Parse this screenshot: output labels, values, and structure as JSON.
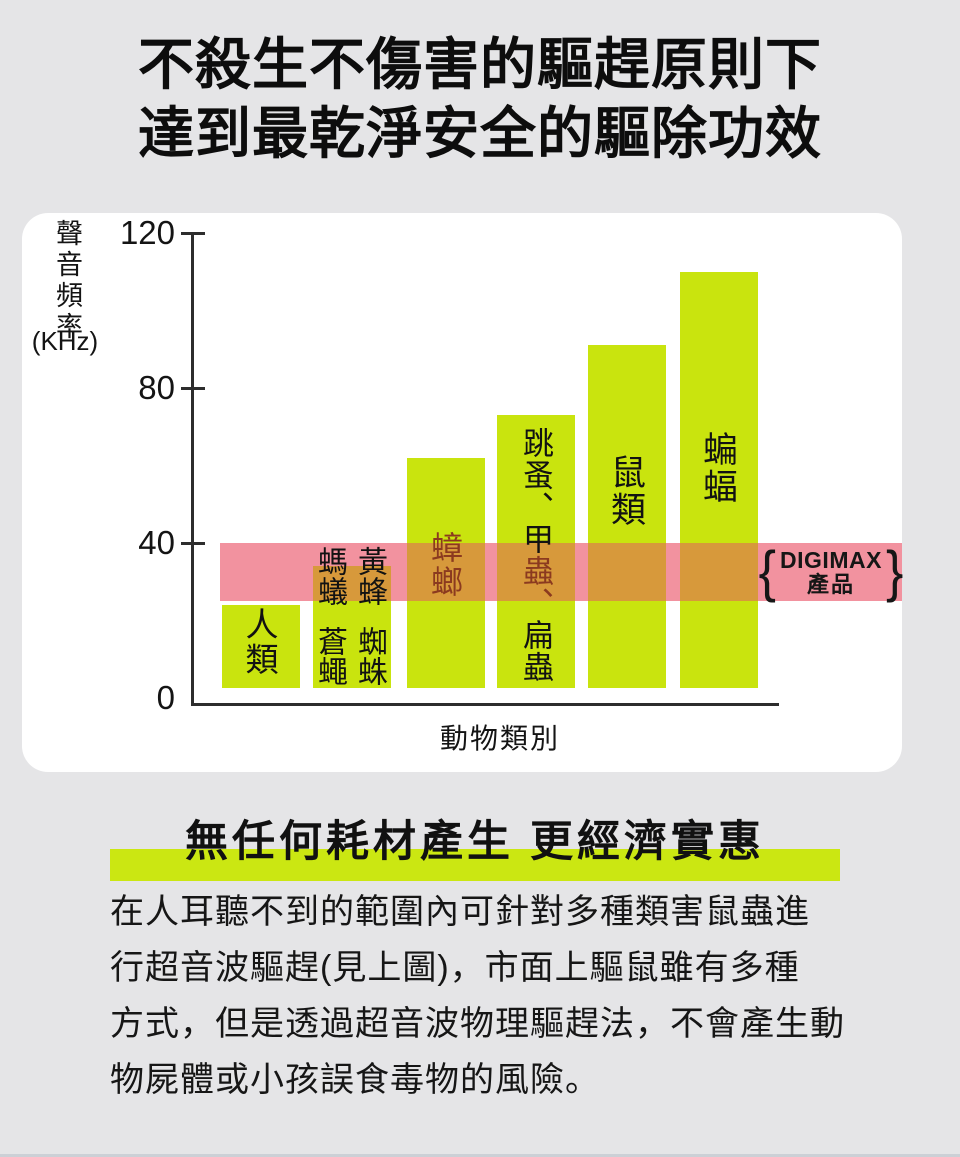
{
  "page": {
    "title_line1": "不殺生不傷害的驅趕原則下",
    "title_line2": "達到最乾淨安全的驅除功效",
    "background_color": "#e5e5e7"
  },
  "chart_data": {
    "type": "bar",
    "title": "",
    "ylabel": "聲音頻率",
    "ylabel_unit": "(KHz)",
    "xlabel": "動物類別",
    "ylim": [
      0,
      120
    ],
    "yticks": [
      "120",
      "80",
      "40",
      "0"
    ],
    "grid": false,
    "categories": [
      "人類",
      "螞蟻/蒼蠅/黃蜂/蜘蛛",
      "蟑螂",
      "跳蚤、甲蟲、扁蟲",
      "鼠類",
      "蝙蝠"
    ],
    "values": [
      24,
      34,
      62,
      73,
      91,
      110
    ],
    "values_unit": "KHz",
    "band": {
      "from": 25,
      "to": 40,
      "brand": "DIGIMAX",
      "product": "產品"
    },
    "colors": {
      "bar": "#c9e40e",
      "band": "#f2929f",
      "overlap": "#d7993b",
      "label_in_band": "#8b3a1f"
    }
  },
  "bar_labels": {
    "human": "人類",
    "ants": "螞蟻",
    "flies": "蒼蠅",
    "wasps": "黃蜂",
    "spiders": "蜘蛛",
    "cockroach": "蟑螂",
    "flea_black_top": "跳蚤、甲",
    "flea_red_mid": "蟲、",
    "flea_black_bottom": "扁蟲",
    "rodents": "鼠類",
    "bats": "蝙蝠"
  },
  "annotation": {
    "brace_left": "{",
    "brace_right": "}",
    "brand": "DIGIMAX",
    "product": "產品"
  },
  "section": {
    "heading": "無任何耗材產生 更經濟實惠",
    "heading_highlight_color": "#cbe712",
    "paragraph_lines": [
      "在人耳聽不到的範圍內可針對多種類害鼠蟲進",
      "行超音波驅趕(見上圖)，市面上驅鼠雖有多種",
      "方式，但是透過超音波物理驅趕法，不會產生動",
      "物屍體或小孩誤食毒物的風險。"
    ]
  }
}
